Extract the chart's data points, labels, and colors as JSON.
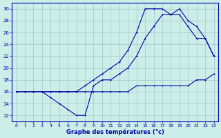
{
  "title": "Graphe des températures (°c)",
  "bg_color": "#cceee8",
  "grid_color": "#aacccc",
  "line_color": "#0000aa",
  "xlim": [
    -0.5,
    23.5
  ],
  "ylim": [
    11,
    31
  ],
  "xticks": [
    0,
    1,
    2,
    3,
    4,
    5,
    6,
    7,
    8,
    9,
    10,
    11,
    12,
    13,
    14,
    15,
    16,
    17,
    18,
    19,
    20,
    21,
    22,
    23
  ],
  "yticks": [
    12,
    14,
    16,
    18,
    20,
    22,
    24,
    26,
    28,
    30
  ],
  "series1_x": [
    0,
    1,
    2,
    3,
    4,
    5,
    6,
    7,
    8,
    9,
    10,
    11,
    12,
    13,
    14,
    15,
    16,
    17,
    18,
    19,
    20,
    21,
    22,
    23
  ],
  "series1_y": [
    16,
    16,
    16,
    16,
    16,
    16,
    16,
    16,
    16,
    16,
    16,
    16,
    16,
    16,
    17,
    17,
    17,
    17,
    17,
    17,
    17,
    18,
    18,
    19
  ],
  "series2_x": [
    0,
    1,
    2,
    3,
    4,
    5,
    6,
    7,
    8,
    9,
    10,
    11,
    12,
    13,
    14,
    15,
    16,
    17,
    18,
    19,
    20,
    21,
    22,
    23
  ],
  "series2_y": [
    16,
    16,
    16,
    16,
    15,
    14,
    13,
    12,
    12,
    17,
    18,
    18,
    19,
    20,
    22,
    25,
    27,
    29,
    29,
    30,
    28,
    27,
    25,
    22
  ],
  "series3_x": [
    3,
    4,
    5,
    6,
    7,
    8,
    9,
    10,
    11,
    12,
    13,
    14,
    15,
    16,
    17,
    18,
    19,
    20,
    21,
    22,
    23
  ],
  "series3_y": [
    16,
    16,
    16,
    16,
    16,
    17,
    18,
    19,
    20,
    21,
    23,
    26,
    30,
    30,
    30,
    29,
    29,
    27,
    25,
    25,
    22
  ]
}
